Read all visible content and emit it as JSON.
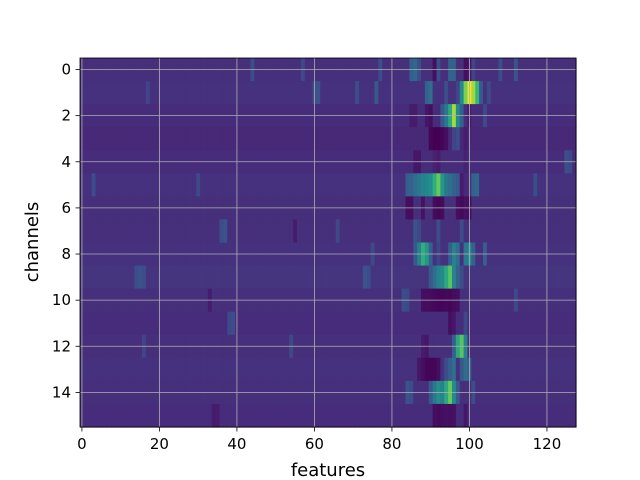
{
  "chart_data": {
    "type": "heatmap",
    "title": "",
    "xlabel": "features",
    "ylabel": "channels",
    "x_ticks": [
      0,
      20,
      40,
      60,
      80,
      100,
      120
    ],
    "y_ticks": [
      0,
      2,
      4,
      6,
      8,
      10,
      12,
      14
    ],
    "xlim": [
      -0.5,
      127.5
    ],
    "ylim": [
      15.5,
      -0.5
    ],
    "grid": true,
    "colormap": "viridis",
    "colorbar": false,
    "n_rows": 16,
    "n_cols": 128,
    "value_range": [
      0,
      1
    ],
    "background_level": 0.17,
    "row_base": [
      0.17,
      0.18,
      0.16,
      0.15,
      0.16,
      0.18,
      0.17,
      0.17,
      0.18,
      0.19,
      0.17,
      0.16,
      0.17,
      0.18,
      0.17,
      0.16
    ],
    "cells": [
      {
        "row": 0,
        "col": 85,
        "v": 0.38
      },
      {
        "row": 0,
        "col": 86,
        "v": 0.42
      },
      {
        "row": 0,
        "col": 87,
        "v": 0.3
      },
      {
        "row": 0,
        "col": 91,
        "v": 0.05
      },
      {
        "row": 0,
        "col": 92,
        "v": 0.3
      },
      {
        "row": 0,
        "col": 95,
        "v": 0.4
      },
      {
        "row": 0,
        "col": 96,
        "v": 0.4
      },
      {
        "row": 0,
        "col": 99,
        "v": 0.05
      },
      {
        "row": 0,
        "col": 100,
        "v": 0.08
      },
      {
        "row": 0,
        "col": 101,
        "v": 0.25
      },
      {
        "row": 0,
        "col": 108,
        "v": 0.3
      },
      {
        "row": 0,
        "col": 112,
        "v": 0.32
      },
      {
        "row": 0,
        "col": 57,
        "v": 0.28
      },
      {
        "row": 0,
        "col": 77,
        "v": 0.3
      },
      {
        "row": 0,
        "col": 44,
        "v": 0.3
      },
      {
        "row": 1,
        "col": 60,
        "v": 0.3
      },
      {
        "row": 1,
        "col": 61,
        "v": 0.32
      },
      {
        "row": 1,
        "col": 71,
        "v": 0.3
      },
      {
        "row": 1,
        "col": 76,
        "v": 0.35
      },
      {
        "row": 1,
        "col": 89,
        "v": 0.4
      },
      {
        "row": 1,
        "col": 90,
        "v": 0.45
      },
      {
        "row": 1,
        "col": 94,
        "v": 0.3
      },
      {
        "row": 1,
        "col": 97,
        "v": 0.25
      },
      {
        "row": 1,
        "col": 98,
        "v": 0.6
      },
      {
        "row": 1,
        "col": 99,
        "v": 0.85
      },
      {
        "row": 1,
        "col": 100,
        "v": 0.98
      },
      {
        "row": 1,
        "col": 101,
        "v": 0.9
      },
      {
        "row": 1,
        "col": 102,
        "v": 0.75
      },
      {
        "row": 1,
        "col": 103,
        "v": 0.35
      },
      {
        "row": 1,
        "col": 105,
        "v": 0.28
      },
      {
        "row": 1,
        "col": 17,
        "v": 0.25
      },
      {
        "row": 2,
        "col": 85,
        "v": 0.1
      },
      {
        "row": 2,
        "col": 86,
        "v": 0.1
      },
      {
        "row": 2,
        "col": 89,
        "v": 0.08
      },
      {
        "row": 2,
        "col": 90,
        "v": 0.05
      },
      {
        "row": 2,
        "col": 93,
        "v": 0.35
      },
      {
        "row": 2,
        "col": 94,
        "v": 0.5
      },
      {
        "row": 2,
        "col": 95,
        "v": 0.7
      },
      {
        "row": 2,
        "col": 96,
        "v": 0.9
      },
      {
        "row": 2,
        "col": 97,
        "v": 0.6
      },
      {
        "row": 2,
        "col": 98,
        "v": 0.4
      },
      {
        "row": 2,
        "col": 100,
        "v": 0.1
      },
      {
        "row": 2,
        "col": 104,
        "v": 0.28
      },
      {
        "row": 3,
        "col": 90,
        "v": 0.02
      },
      {
        "row": 3,
        "col": 91,
        "v": 0.0
      },
      {
        "row": 3,
        "col": 92,
        "v": 0.0
      },
      {
        "row": 3,
        "col": 93,
        "v": 0.02
      },
      {
        "row": 3,
        "col": 94,
        "v": 0.05
      },
      {
        "row": 3,
        "col": 96,
        "v": 0.25
      },
      {
        "row": 3,
        "col": 97,
        "v": 0.3
      },
      {
        "row": 3,
        "col": 99,
        "v": 0.1
      },
      {
        "row": 4,
        "col": 86,
        "v": 0.08
      },
      {
        "row": 4,
        "col": 87,
        "v": 0.08
      },
      {
        "row": 4,
        "col": 91,
        "v": 0.12
      },
      {
        "row": 4,
        "col": 92,
        "v": 0.1
      },
      {
        "row": 4,
        "col": 99,
        "v": 0.12
      },
      {
        "row": 4,
        "col": 125,
        "v": 0.3
      },
      {
        "row": 4,
        "col": 126,
        "v": 0.28
      },
      {
        "row": 5,
        "col": 84,
        "v": 0.38
      },
      {
        "row": 5,
        "col": 85,
        "v": 0.4
      },
      {
        "row": 5,
        "col": 86,
        "v": 0.45
      },
      {
        "row": 5,
        "col": 87,
        "v": 0.5
      },
      {
        "row": 5,
        "col": 88,
        "v": 0.55
      },
      {
        "row": 5,
        "col": 89,
        "v": 0.58
      },
      {
        "row": 5,
        "col": 90,
        "v": 0.62
      },
      {
        "row": 5,
        "col": 91,
        "v": 0.72
      },
      {
        "row": 5,
        "col": 92,
        "v": 0.82
      },
      {
        "row": 5,
        "col": 93,
        "v": 0.65
      },
      {
        "row": 5,
        "col": 94,
        "v": 0.5
      },
      {
        "row": 5,
        "col": 95,
        "v": 0.45
      },
      {
        "row": 5,
        "col": 96,
        "v": 0.4
      },
      {
        "row": 5,
        "col": 97,
        "v": 0.35
      },
      {
        "row": 5,
        "col": 98,
        "v": 0.1
      },
      {
        "row": 5,
        "col": 99,
        "v": 0.15
      },
      {
        "row": 5,
        "col": 101,
        "v": 0.4
      },
      {
        "row": 5,
        "col": 102,
        "v": 0.42
      },
      {
        "row": 5,
        "col": 3,
        "v": 0.3
      },
      {
        "row": 5,
        "col": 30,
        "v": 0.28
      },
      {
        "row": 5,
        "col": 117,
        "v": 0.3
      },
      {
        "row": 6,
        "col": 84,
        "v": 0.05
      },
      {
        "row": 6,
        "col": 85,
        "v": 0.05
      },
      {
        "row": 6,
        "col": 88,
        "v": 0.06
      },
      {
        "row": 6,
        "col": 91,
        "v": 0.04
      },
      {
        "row": 6,
        "col": 92,
        "v": 0.02
      },
      {
        "row": 6,
        "col": 93,
        "v": 0.04
      },
      {
        "row": 6,
        "col": 97,
        "v": 0.05
      },
      {
        "row": 6,
        "col": 98,
        "v": 0.03
      },
      {
        "row": 6,
        "col": 99,
        "v": 0.06
      },
      {
        "row": 6,
        "col": 100,
        "v": 0.05
      },
      {
        "row": 7,
        "col": 36,
        "v": 0.3
      },
      {
        "row": 7,
        "col": 37,
        "v": 0.32
      },
      {
        "row": 7,
        "col": 55,
        "v": 0.1
      },
      {
        "row": 7,
        "col": 66,
        "v": 0.28
      },
      {
        "row": 7,
        "col": 86,
        "v": 0.32
      },
      {
        "row": 7,
        "col": 87,
        "v": 0.28
      },
      {
        "row": 7,
        "col": 92,
        "v": 0.3
      },
      {
        "row": 7,
        "col": 98,
        "v": 0.3
      },
      {
        "row": 8,
        "col": 86,
        "v": 0.35
      },
      {
        "row": 8,
        "col": 87,
        "v": 0.55
      },
      {
        "row": 8,
        "col": 88,
        "v": 0.72
      },
      {
        "row": 8,
        "col": 89,
        "v": 0.65
      },
      {
        "row": 8,
        "col": 90,
        "v": 0.4
      },
      {
        "row": 8,
        "col": 92,
        "v": 0.25
      },
      {
        "row": 8,
        "col": 95,
        "v": 0.38
      },
      {
        "row": 8,
        "col": 96,
        "v": 0.55
      },
      {
        "row": 8,
        "col": 97,
        "v": 0.45
      },
      {
        "row": 8,
        "col": 99,
        "v": 0.5
      },
      {
        "row": 8,
        "col": 100,
        "v": 0.58
      },
      {
        "row": 8,
        "col": 101,
        "v": 0.4
      },
      {
        "row": 8,
        "col": 104,
        "v": 0.38
      },
      {
        "row": 8,
        "col": 75,
        "v": 0.28
      },
      {
        "row": 9,
        "col": 14,
        "v": 0.3
      },
      {
        "row": 9,
        "col": 15,
        "v": 0.32
      },
      {
        "row": 9,
        "col": 16,
        "v": 0.3
      },
      {
        "row": 9,
        "col": 73,
        "v": 0.32
      },
      {
        "row": 9,
        "col": 74,
        "v": 0.3
      },
      {
        "row": 9,
        "col": 90,
        "v": 0.35
      },
      {
        "row": 9,
        "col": 91,
        "v": 0.45
      },
      {
        "row": 9,
        "col": 92,
        "v": 0.55
      },
      {
        "row": 9,
        "col": 93,
        "v": 0.6
      },
      {
        "row": 9,
        "col": 94,
        "v": 0.7
      },
      {
        "row": 9,
        "col": 95,
        "v": 0.8
      },
      {
        "row": 9,
        "col": 96,
        "v": 0.55
      },
      {
        "row": 9,
        "col": 97,
        "v": 0.4
      },
      {
        "row": 9,
        "col": 98,
        "v": 0.3
      },
      {
        "row": 10,
        "col": 83,
        "v": 0.3
      },
      {
        "row": 10,
        "col": 84,
        "v": 0.28
      },
      {
        "row": 10,
        "col": 88,
        "v": 0.05
      },
      {
        "row": 10,
        "col": 89,
        "v": 0.05
      },
      {
        "row": 10,
        "col": 90,
        "v": 0.04
      },
      {
        "row": 10,
        "col": 91,
        "v": 0.03
      },
      {
        "row": 10,
        "col": 92,
        "v": 0.02
      },
      {
        "row": 10,
        "col": 93,
        "v": 0.02
      },
      {
        "row": 10,
        "col": 94,
        "v": 0.03
      },
      {
        "row": 10,
        "col": 95,
        "v": 0.02
      },
      {
        "row": 10,
        "col": 96,
        "v": 0.04
      },
      {
        "row": 10,
        "col": 97,
        "v": 0.05
      },
      {
        "row": 10,
        "col": 112,
        "v": 0.28
      },
      {
        "row": 10,
        "col": 33,
        "v": 0.1
      },
      {
        "row": 11,
        "col": 38,
        "v": 0.28
      },
      {
        "row": 11,
        "col": 39,
        "v": 0.3
      },
      {
        "row": 11,
        "col": 95,
        "v": 0.05
      },
      {
        "row": 11,
        "col": 96,
        "v": 0.08
      },
      {
        "row": 11,
        "col": 99,
        "v": 0.28
      },
      {
        "row": 12,
        "col": 96,
        "v": 0.4
      },
      {
        "row": 12,
        "col": 97,
        "v": 0.7
      },
      {
        "row": 12,
        "col": 98,
        "v": 0.8
      },
      {
        "row": 12,
        "col": 99,
        "v": 0.55
      },
      {
        "row": 12,
        "col": 88,
        "v": 0.1
      },
      {
        "row": 12,
        "col": 89,
        "v": 0.08
      },
      {
        "row": 12,
        "col": 16,
        "v": 0.25
      },
      {
        "row": 12,
        "col": 54,
        "v": 0.28
      },
      {
        "row": 13,
        "col": 87,
        "v": 0.08
      },
      {
        "row": 13,
        "col": 88,
        "v": 0.05
      },
      {
        "row": 13,
        "col": 89,
        "v": 0.02
      },
      {
        "row": 13,
        "col": 90,
        "v": 0.01
      },
      {
        "row": 13,
        "col": 91,
        "v": 0.02
      },
      {
        "row": 13,
        "col": 92,
        "v": 0.05
      },
      {
        "row": 13,
        "col": 94,
        "v": 0.3
      },
      {
        "row": 13,
        "col": 95,
        "v": 0.38
      },
      {
        "row": 13,
        "col": 96,
        "v": 0.45
      },
      {
        "row": 13,
        "col": 98,
        "v": 0.35
      },
      {
        "row": 13,
        "col": 99,
        "v": 0.45
      },
      {
        "row": 13,
        "col": 100,
        "v": 0.4
      },
      {
        "row": 14,
        "col": 84,
        "v": 0.32
      },
      {
        "row": 14,
        "col": 85,
        "v": 0.3
      },
      {
        "row": 14,
        "col": 90,
        "v": 0.35
      },
      {
        "row": 14,
        "col": 91,
        "v": 0.5
      },
      {
        "row": 14,
        "col": 92,
        "v": 0.62
      },
      {
        "row": 14,
        "col": 93,
        "v": 0.55
      },
      {
        "row": 14,
        "col": 94,
        "v": 0.7
      },
      {
        "row": 14,
        "col": 95,
        "v": 0.82
      },
      {
        "row": 14,
        "col": 96,
        "v": 0.6
      },
      {
        "row": 14,
        "col": 97,
        "v": 0.35
      },
      {
        "row": 14,
        "col": 101,
        "v": 0.3
      },
      {
        "row": 15,
        "col": 34,
        "v": 0.1
      },
      {
        "row": 15,
        "col": 35,
        "v": 0.1
      },
      {
        "row": 15,
        "col": 91,
        "v": 0.05
      },
      {
        "row": 15,
        "col": 92,
        "v": 0.04
      },
      {
        "row": 15,
        "col": 93,
        "v": 0.05
      },
      {
        "row": 15,
        "col": 94,
        "v": 0.06
      },
      {
        "row": 15,
        "col": 95,
        "v": 0.05
      },
      {
        "row": 15,
        "col": 96,
        "v": 0.06
      },
      {
        "row": 15,
        "col": 99,
        "v": 0.08
      }
    ]
  }
}
